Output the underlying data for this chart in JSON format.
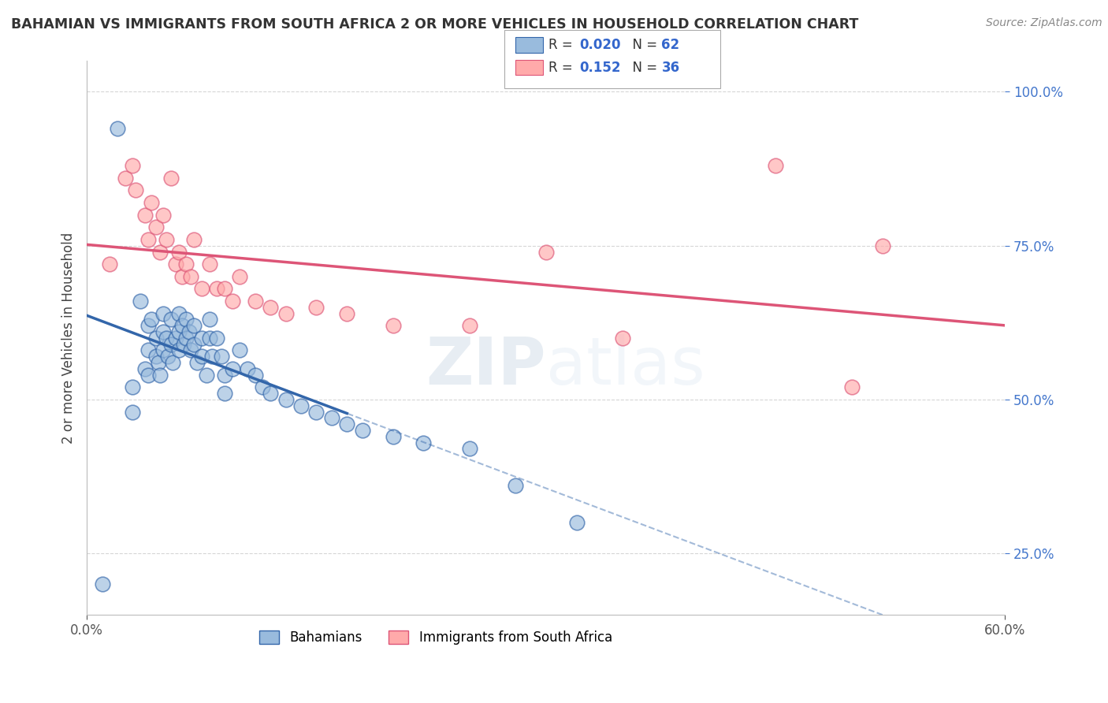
{
  "title": "BAHAMIAN VS IMMIGRANTS FROM SOUTH AFRICA 2 OR MORE VEHICLES IN HOUSEHOLD CORRELATION CHART",
  "source": "Source: ZipAtlas.com",
  "ylabel": "2 or more Vehicles in Household",
  "xlim": [
    0.0,
    0.6
  ],
  "ylim": [
    0.15,
    1.05
  ],
  "yticks": [
    0.25,
    0.5,
    0.75,
    1.0
  ],
  "ytick_labels": [
    "25.0%",
    "50.0%",
    "75.0%",
    "100.0%"
  ],
  "legend_label1": "Bahamians",
  "legend_label2": "Immigrants from South Africa",
  "R1": 0.02,
  "N1": 62,
  "R2": 0.152,
  "N2": 36,
  "color_blue": "#99BBDD",
  "color_pink": "#FFAAAA",
  "color_blue_line": "#3366AA",
  "color_pink_line": "#DD5577",
  "watermark_zip": "ZIP",
  "watermark_atlas": "atlas",
  "blue_scatter_x": [
    0.01,
    0.02,
    0.03,
    0.03,
    0.035,
    0.038,
    0.04,
    0.04,
    0.04,
    0.042,
    0.045,
    0.045,
    0.047,
    0.048,
    0.05,
    0.05,
    0.05,
    0.052,
    0.053,
    0.055,
    0.055,
    0.056,
    0.058,
    0.06,
    0.06,
    0.06,
    0.062,
    0.063,
    0.065,
    0.065,
    0.067,
    0.068,
    0.07,
    0.07,
    0.072,
    0.075,
    0.075,
    0.078,
    0.08,
    0.08,
    0.082,
    0.085,
    0.088,
    0.09,
    0.09,
    0.095,
    0.1,
    0.105,
    0.11,
    0.115,
    0.12,
    0.13,
    0.14,
    0.15,
    0.16,
    0.17,
    0.18,
    0.2,
    0.22,
    0.25,
    0.28,
    0.32
  ],
  "blue_scatter_y": [
    0.2,
    0.94,
    0.52,
    0.48,
    0.66,
    0.55,
    0.62,
    0.58,
    0.54,
    0.63,
    0.6,
    0.57,
    0.56,
    0.54,
    0.64,
    0.61,
    0.58,
    0.6,
    0.57,
    0.63,
    0.59,
    0.56,
    0.6,
    0.64,
    0.61,
    0.58,
    0.62,
    0.59,
    0.63,
    0.6,
    0.61,
    0.58,
    0.62,
    0.59,
    0.56,
    0.6,
    0.57,
    0.54,
    0.63,
    0.6,
    0.57,
    0.6,
    0.57,
    0.54,
    0.51,
    0.55,
    0.58,
    0.55,
    0.54,
    0.52,
    0.51,
    0.5,
    0.49,
    0.48,
    0.47,
    0.46,
    0.45,
    0.44,
    0.43,
    0.42,
    0.36,
    0.3
  ],
  "pink_scatter_x": [
    0.015,
    0.025,
    0.03,
    0.032,
    0.038,
    0.04,
    0.042,
    0.045,
    0.048,
    0.05,
    0.052,
    0.055,
    0.058,
    0.06,
    0.062,
    0.065,
    0.068,
    0.07,
    0.075,
    0.08,
    0.085,
    0.09,
    0.095,
    0.1,
    0.11,
    0.12,
    0.13,
    0.15,
    0.17,
    0.2,
    0.25,
    0.3,
    0.35,
    0.45,
    0.5,
    0.52
  ],
  "pink_scatter_y": [
    0.72,
    0.86,
    0.88,
    0.84,
    0.8,
    0.76,
    0.82,
    0.78,
    0.74,
    0.8,
    0.76,
    0.86,
    0.72,
    0.74,
    0.7,
    0.72,
    0.7,
    0.76,
    0.68,
    0.72,
    0.68,
    0.68,
    0.66,
    0.7,
    0.66,
    0.65,
    0.64,
    0.65,
    0.64,
    0.62,
    0.62,
    0.74,
    0.6,
    0.88,
    0.52,
    0.75
  ]
}
